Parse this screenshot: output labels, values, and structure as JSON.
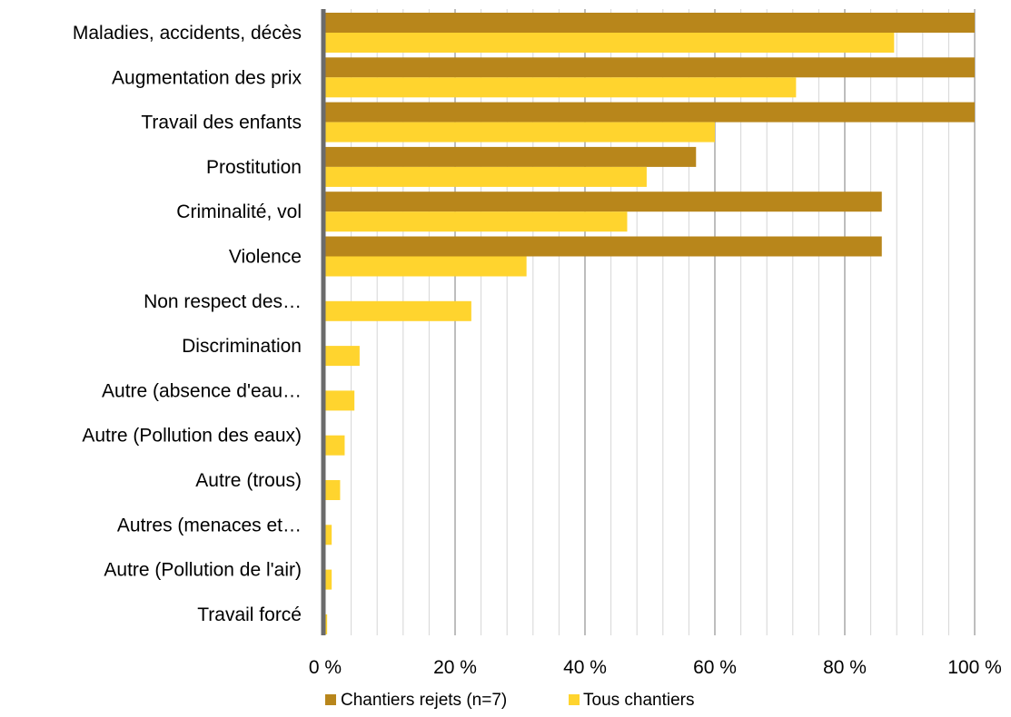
{
  "chart_data": {
    "type": "bar",
    "orientation": "horizontal",
    "categories": [
      "Maladies, accidents, décès",
      "Augmentation des prix",
      "Travail des enfants",
      "Prostitution",
      "Criminalité, vol",
      "Violence",
      "Non respect des…",
      "Discrimination",
      "Autre (absence d'eau…",
      "Autre (Pollution des eaux)",
      "Autre (trous)",
      "Autres (menaces et…",
      "Autre (Pollution de l'air)",
      "Travail forcé"
    ],
    "series": [
      {
        "name": "Chantiers rejets (n=7)",
        "color": "#b8861b",
        "values": [
          100,
          100,
          100,
          57.1,
          85.7,
          85.7,
          0,
          0,
          0,
          0,
          0,
          0,
          0,
          0
        ]
      },
      {
        "name": "Tous chantiers",
        "color": "#ffd42e",
        "values": [
          87.6,
          72.5,
          60,
          49.5,
          46.5,
          31,
          22.5,
          5.3,
          4.5,
          3,
          2.3,
          1,
          1,
          0.3
        ]
      }
    ],
    "xlim": [
      0,
      100
    ],
    "xticks": [
      "0 %",
      "20 %",
      "40 %",
      "60 %",
      "80 %",
      "100 %"
    ],
    "grid": true,
    "legend_position": "bottom"
  }
}
